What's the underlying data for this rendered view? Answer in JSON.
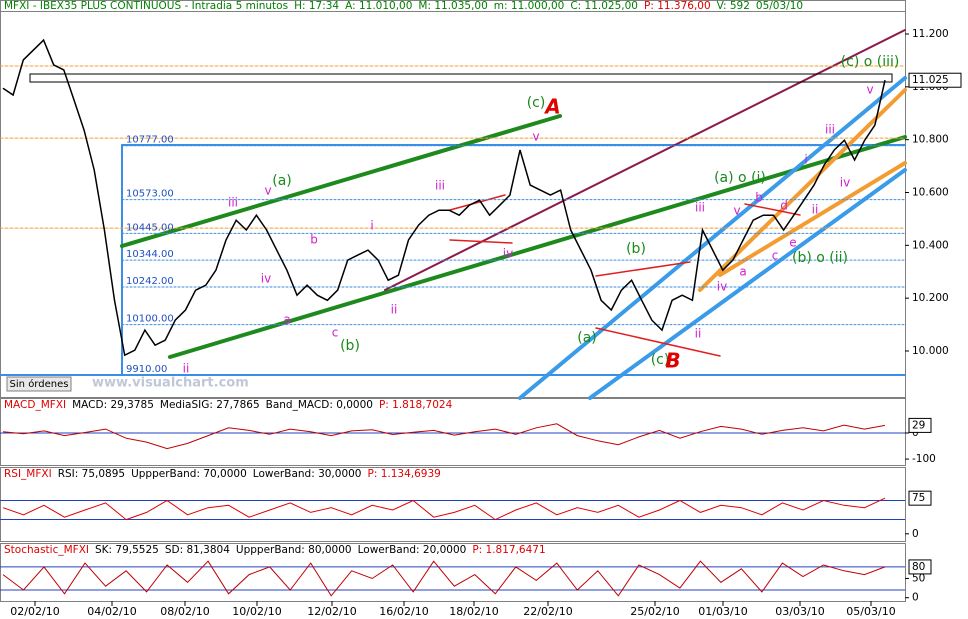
{
  "chart_data": [
    {
      "type": "line",
      "title_parts": [
        "MFXI - IBEX35 PLUS CONTINUOUS - Intradia 5 minutos",
        "H: 17:34",
        "A: 11.010,00",
        "M: 11.035,00",
        "m: 11.000,00",
        "C: 11.025,00",
        "P: 11.376,00",
        "V: 592",
        "05/03/10"
      ],
      "title_colors": [
        "#008000",
        "#008000",
        "#008000",
        "#008000",
        "#008000",
        "#008000",
        "#e00000",
        "#008000",
        "#008000"
      ],
      "color": "#000000",
      "values": [
        10995,
        10969,
        11102,
        11139,
        11177,
        11083,
        11064,
        10950,
        10836,
        10685,
        10458,
        10192,
        9984,
        10003,
        10079,
        10022,
        10041,
        10117,
        10155,
        10230,
        10249,
        10306,
        10420,
        10495,
        10458,
        10514,
        10458,
        10382,
        10306,
        10211,
        10249,
        10211,
        10192,
        10230,
        10344,
        10363,
        10382,
        10344,
        10268,
        10287,
        10420,
        10477,
        10514,
        10533,
        10533,
        10514,
        10552,
        10571,
        10514,
        10552,
        10590,
        10761,
        10628,
        10609,
        10590,
        10609,
        10458,
        10382,
        10306,
        10192,
        10155,
        10230,
        10268,
        10192,
        10117,
        10079,
        10192,
        10211,
        10192,
        10458,
        10382,
        10306,
        10344,
        10420,
        10495,
        10514,
        10514,
        10458,
        10514,
        10571,
        10628,
        10704,
        10761,
        10798,
        10723,
        10798,
        10855,
        11025
      ],
      "ylim": [
        9822,
        11253
      ],
      "yticks": [
        {
          "value": 11200,
          "label": "11.200"
        },
        {
          "value": 11000,
          "label": "11.000"
        },
        {
          "value": 10800,
          "label": "10.800"
        },
        {
          "value": 10600,
          "label": "10.600"
        },
        {
          "value": 10400,
          "label": "10.400"
        },
        {
          "value": 10200,
          "label": "10.200"
        },
        {
          "value": 10000,
          "label": "10.000"
        }
      ],
      "last_label": {
        "value": 11025,
        "label": "11.025"
      },
      "levels": [
        {
          "value": 10777,
          "label": "10777.00"
        },
        {
          "value": 10573,
          "label": "10573.00"
        },
        {
          "value": 10445,
          "label": "10445.00"
        },
        {
          "value": 10344,
          "label": "10344.00"
        },
        {
          "value": 10242,
          "label": "10242.00"
        },
        {
          "value": 10100,
          "label": "10100.00"
        },
        {
          "value": 9910,
          "label": "9910.00"
        }
      ],
      "orange_levels": [
        11079,
        10806,
        10465
      ],
      "wave_labels": [
        "(a)",
        "(b)",
        "(c)",
        "(a) o (i)",
        "(b)",
        "(a)",
        "(c)",
        "(b) o (ii)",
        "(c) o (iii)",
        "A",
        "B",
        "iii",
        "v",
        "iv",
        "b",
        "a",
        "c",
        "i",
        "ii",
        "iii",
        "iv",
        "v",
        "ii",
        "iii",
        "v",
        "iv",
        "ii",
        "b",
        "a",
        "c",
        "d",
        "e",
        "i",
        "ii",
        "iii",
        "iv",
        "v"
      ],
      "status": "Sin órdenes",
      "watermark": "www.visualchart.com",
      "xtick_labels": [
        "02/02/10",
        "04/02/10",
        "08/02/10",
        "10/02/10",
        "12/02/10",
        "16/02/10",
        "18/02/10",
        "22/02/10",
        "25/02/10",
        "01/03/10",
        "03/03/10",
        "05/03/10"
      ]
    },
    {
      "type": "line",
      "title_parts": [
        "MACD_MFXI",
        "MACD: 29,3785",
        "MediaSIG: 27,7865",
        "Band_MACD: 0,0000",
        "P: 1.818,7024"
      ],
      "title_colors": [
        "#e00000",
        "#000000",
        "#000000",
        "#000000",
        "#e00000"
      ],
      "color": "#c00000",
      "values": [
        5,
        -3,
        8,
        -10,
        2,
        15,
        -20,
        -35,
        -60,
        -40,
        -10,
        20,
        10,
        -5,
        15,
        5,
        -10,
        8,
        12,
        -6,
        3,
        10,
        -8,
        5,
        15,
        -5,
        20,
        35,
        -10,
        -30,
        -45,
        -15,
        10,
        -20,
        5,
        25,
        15,
        -5,
        10,
        20,
        8,
        30,
        15,
        29
      ],
      "ylim": [
        -115,
        88
      ],
      "yticks": [
        0,
        -100
      ],
      "levels": [
        0
      ],
      "last_label": 29
    },
    {
      "type": "line",
      "title_parts": [
        "RSI_MFXI",
        "RSI: 75,0895",
        "UppperBand: 70,0000",
        "LowerBand: 30,0000",
        "P: 1.134,6939"
      ],
      "title_colors": [
        "#e00000",
        "#000000",
        "#000000",
        "#000000",
        "#e00000"
      ],
      "color": "#e00000",
      "values": [
        55,
        40,
        60,
        35,
        50,
        65,
        30,
        45,
        70,
        40,
        55,
        60,
        35,
        50,
        65,
        45,
        55,
        40,
        60,
        50,
        70,
        35,
        45,
        60,
        30,
        50,
        65,
        40,
        55,
        45,
        60,
        35,
        50,
        70,
        45,
        60,
        55,
        40,
        65,
        50,
        70,
        60,
        55,
        75
      ],
      "ylim": [
        -13,
        109
      ],
      "yticks": [
        0
      ],
      "levels": [
        70,
        30
      ],
      "last_label": 75
    },
    {
      "type": "line",
      "title_parts": [
        "Stochastic_MFXI",
        "SK: 79,5525",
        "SD: 81,3804",
        "UppperBand: 80,0000",
        "LowerBand: 20,0000",
        "P: 1.817,6471"
      ],
      "title_colors": [
        "#e00000",
        "#000000",
        "#000000",
        "#000000",
        "#000000",
        "#e00000"
      ],
      "color": "#c00000",
      "values": [
        60,
        20,
        80,
        10,
        90,
        30,
        70,
        15,
        85,
        40,
        95,
        10,
        60,
        80,
        20,
        90,
        5,
        70,
        50,
        85,
        15,
        95,
        30,
        60,
        10,
        80,
        45,
        90,
        20,
        70,
        5,
        85,
        60,
        25,
        95,
        40,
        75,
        15,
        90,
        55,
        85,
        70,
        60,
        80
      ],
      "ylim": [
        -6,
        98
      ],
      "yticks": [
        50,
        0
      ],
      "levels": [
        80,
        20
      ],
      "last_label": 80
    }
  ]
}
